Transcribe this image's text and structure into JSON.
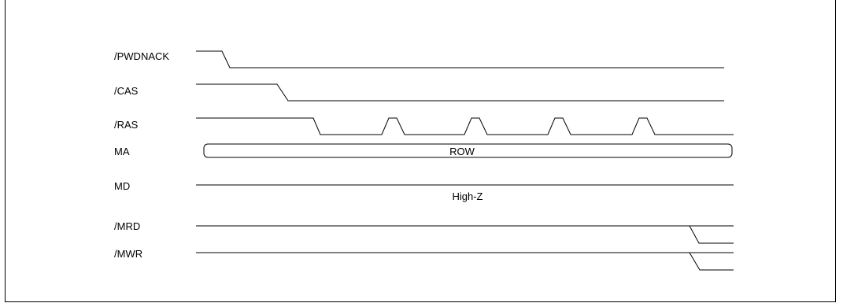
{
  "signals": {
    "pwdnack": "/PWDNACK",
    "cas": "/CAS",
    "ras": "/RAS",
    "ma": "MA",
    "md": "MD",
    "mrd": "/MRD",
    "mwr": "/MWR"
  },
  "bus_labels": {
    "ma_value": "ROW",
    "md_state": "High-Z"
  }
}
